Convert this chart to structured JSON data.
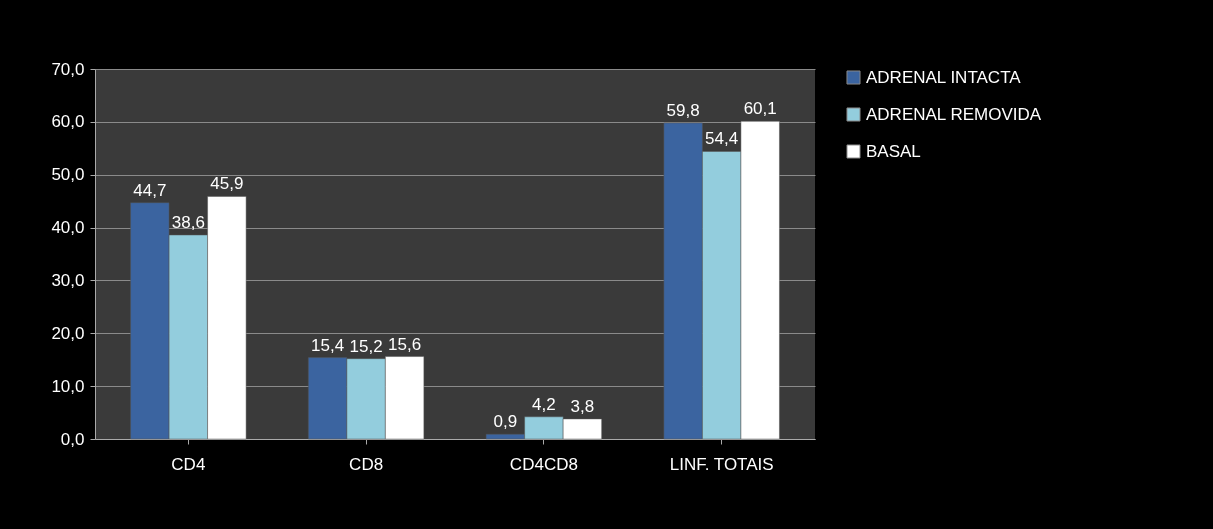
{
  "chart_data": {
    "type": "bar",
    "categories": [
      "CD4",
      "CD8",
      "CD4CD8",
      "LINF. TOTAIS"
    ],
    "series": [
      {
        "name": "ADRENAL INTACTA",
        "color": "#3b64a0",
        "values": [
          44.7,
          15.4,
          0.9,
          59.8
        ],
        "value_labels": [
          "44,7",
          "15,4",
          "0,9",
          "59,8"
        ]
      },
      {
        "name": "ADRENAL REMOVIDA",
        "color": "#93cddd",
        "values": [
          38.6,
          15.2,
          4.2,
          54.4
        ],
        "value_labels": [
          "38,6",
          "15,2",
          "4,2",
          "54,4"
        ]
      },
      {
        "name": "BASAL",
        "color": "#ffffff",
        "values": [
          45.9,
          15.6,
          3.8,
          60.1
        ],
        "value_labels": [
          "45,9",
          "15,6",
          "3,8",
          "60,1"
        ]
      }
    ],
    "ylim": [
      0,
      70
    ],
    "yticks": [
      {
        "value": 0,
        "label": "0,0"
      },
      {
        "value": 10,
        "label": "10,0"
      },
      {
        "value": 20,
        "label": "20,0"
      },
      {
        "value": 30,
        "label": "30,0"
      },
      {
        "value": 40,
        "label": "40,0"
      },
      {
        "value": 50,
        "label": "50,0"
      },
      {
        "value": 60,
        "label": "60,0"
      },
      {
        "value": 70,
        "label": "70,0"
      }
    ],
    "grid": "y",
    "legend": "right"
  }
}
